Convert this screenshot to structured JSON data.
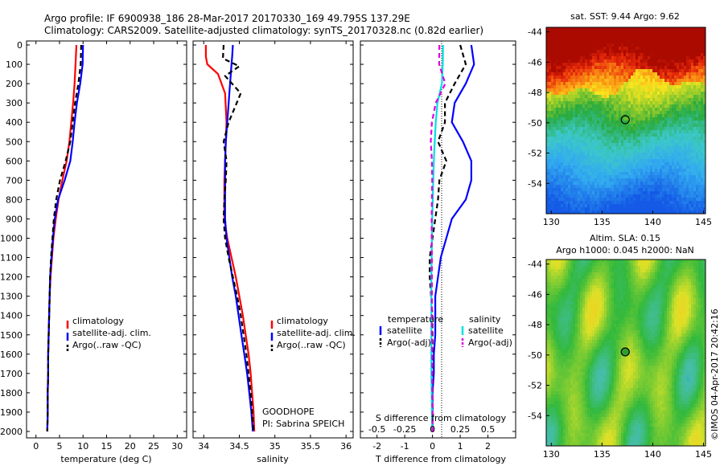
{
  "header": {
    "title_line1": "Argo profile: IF 6900938_186 28-Mar-2017 20170330_169 49.795S 137.29E",
    "title_line2": "Climatology: CARS2009. Satellite-adjusted climatology: synTS_20170328.nc (0.82d earlier)"
  },
  "colors": {
    "climatology": "#ff0000",
    "satellite": "#0000ff",
    "argo": "#000000",
    "satellite_s": "#00e0e0",
    "argo_s": "#e000e0"
  },
  "panels": {
    "temperature": {
      "xlabel": "temperature (deg C)",
      "xticks": [
        "0",
        "5",
        "10",
        "15",
        "20",
        "25",
        "30"
      ],
      "legend": [
        "climatology",
        "satellite-adj. clim.",
        "Argo(..raw -QC)"
      ]
    },
    "salinity": {
      "xlabel": "salinity",
      "xticks": [
        "34",
        "34.5",
        "35",
        "35.5",
        "36"
      ],
      "legend": [
        "climatology",
        "satellite-adj. clim.",
        "Argo(..raw -QC)"
      ],
      "note1": "GOODHOPE",
      "note2": "PI: Sabrina SPEICH"
    },
    "difference": {
      "xlabel": "T difference from climatology",
      "top_label": "S difference from climatology",
      "xticks_t": [
        "-2",
        "-1",
        "0",
        "1",
        "2"
      ],
      "xticks_s": [
        "-0.5",
        "-0.25",
        "0",
        "0.25",
        "0.5"
      ],
      "legend_t_title": "temperature",
      "legend_s_title": "salinity",
      "legend_t": [
        "satellite",
        "Argo(-adj)"
      ],
      "legend_s": [
        "satellite",
        "Argo(-adj)"
      ]
    },
    "sst_map": {
      "title": "sat. SST: 9.44 Argo: 9.62",
      "yticks": [
        "-44",
        "-46",
        "-48",
        "-50",
        "-52",
        "-54"
      ],
      "xticks": [
        "130",
        "135",
        "140",
        "145"
      ]
    },
    "sla_map": {
      "title_line1": "Altim. SLA: 0.15",
      "title_line2": "Argo h1000: 0.045 h2000: NaN",
      "yticks": [
        "-44",
        "-46",
        "-48",
        "-50",
        "-52",
        "-54"
      ],
      "xticks": [
        "130",
        "135",
        "140",
        "145"
      ],
      "credit": "©IMOS 04-Apr-2017 20:42:16"
    }
  },
  "depth_ticks": [
    "0",
    "100",
    "200",
    "300",
    "400",
    "500",
    "600",
    "700",
    "800",
    "900",
    "1000",
    "1100",
    "1200",
    "1300",
    "1400",
    "1500",
    "1600",
    "1700",
    "1800",
    "1900",
    "2000"
  ],
  "chart_data": [
    {
      "type": "line",
      "name": "temperature profile",
      "xlabel": "temperature (deg C)",
      "ylabel": "",
      "xlim": [
        -2,
        32
      ],
      "ylim": [
        2050,
        0
      ],
      "series": [
        {
          "name": "climatology",
          "color": "#ff0000",
          "style": "solid",
          "x": [
            8.6,
            8.4,
            8.2,
            7.9,
            7.5,
            7.1,
            6.5,
            5.6,
            4.8,
            4.2,
            3.7,
            3.4,
            3.1,
            2.9,
            2.8,
            2.7,
            2.6,
            2.6,
            2.5,
            2.5,
            2.4
          ],
          "y": [
            0,
            100,
            200,
            300,
            400,
            500,
            600,
            700,
            800,
            900,
            1000,
            1100,
            1200,
            1300,
            1400,
            1500,
            1600,
            1700,
            1800,
            1900,
            2000
          ]
        },
        {
          "name": "satellite-adj. clim.",
          "color": "#0000ff",
          "style": "solid",
          "x": [
            10.0,
            9.9,
            9.4,
            8.7,
            8.2,
            7.8,
            7.3,
            6.1,
            4.7,
            4.0,
            3.6,
            3.3,
            3.0,
            2.9,
            2.8,
            2.7,
            2.6,
            2.6,
            2.5,
            2.5,
            2.4
          ],
          "y": [
            0,
            100,
            200,
            300,
            400,
            500,
            600,
            700,
            800,
            900,
            1000,
            1100,
            1200,
            1300,
            1400,
            1500,
            1600,
            1700,
            1800,
            1900,
            2000
          ]
        },
        {
          "name": "Argo(..raw -QC)",
          "color": "#000000",
          "style": "dash",
          "x": [
            9.6,
            9.5,
            9.0,
            8.3,
            7.8,
            7.3,
            6.3,
            5.1,
            4.3,
            3.8,
            3.5,
            3.2,
            3.0,
            2.9,
            2.8,
            2.7,
            2.6,
            2.6,
            2.5,
            2.5,
            2.4
          ],
          "y": [
            0,
            100,
            200,
            300,
            400,
            500,
            600,
            700,
            800,
            900,
            1000,
            1100,
            1200,
            1300,
            1400,
            1500,
            1600,
            1700,
            1800,
            1900,
            2000
          ]
        }
      ]
    },
    {
      "type": "line",
      "name": "salinity profile",
      "xlabel": "salinity",
      "ylabel": "",
      "xlim": [
        33.85,
        36.1
      ],
      "ylim": [
        2050,
        0
      ],
      "series": [
        {
          "name": "climatology",
          "color": "#ff0000",
          "style": "solid",
          "x": [
            34.03,
            34.03,
            34.05,
            34.2,
            34.3,
            34.32,
            34.31,
            34.3,
            34.29,
            34.29,
            34.29,
            34.33,
            34.39,
            34.45,
            34.5,
            34.55,
            34.59,
            34.63,
            34.66,
            34.68,
            34.7,
            34.71
          ],
          "y": [
            0,
            60,
            100,
            150,
            250,
            400,
            500,
            600,
            700,
            800,
            900,
            1000,
            1100,
            1200,
            1300,
            1400,
            1500,
            1600,
            1700,
            1800,
            1900,
            2000
          ]
        },
        {
          "name": "satellite-adj. clim.",
          "color": "#0000ff",
          "style": "solid",
          "x": [
            34.41,
            34.4,
            34.39,
            34.38,
            34.36,
            34.33,
            34.31,
            34.3,
            34.3,
            34.3,
            34.3,
            34.32,
            34.36,
            34.4,
            34.45,
            34.49,
            34.53,
            34.57,
            34.61,
            34.64,
            34.67,
            34.69
          ],
          "y": [
            0,
            60,
            100,
            150,
            250,
            400,
            500,
            600,
            700,
            800,
            900,
            1000,
            1100,
            1200,
            1300,
            1400,
            1500,
            1600,
            1700,
            1800,
            1900,
            2000
          ]
        },
        {
          "name": "Argo(..raw -QC)",
          "color": "#000000",
          "style": "dash",
          "x": [
            34.28,
            34.27,
            34.5,
            34.3,
            34.52,
            34.35,
            34.28,
            34.32,
            34.31,
            34.29,
            34.28,
            34.3,
            34.35,
            34.41,
            34.47,
            34.52,
            34.56,
            34.6,
            34.63,
            34.66,
            34.68,
            34.7
          ],
          "y": [
            0,
            70,
            110,
            160,
            250,
            400,
            500,
            600,
            700,
            800,
            900,
            1000,
            1100,
            1200,
            1300,
            1400,
            1500,
            1600,
            1700,
            1800,
            1900,
            2000
          ]
        }
      ]
    },
    {
      "type": "line",
      "name": "difference from climatology",
      "xlabel": "T difference from climatology",
      "x2label": "S difference from climatology",
      "xlim": [
        -2.6,
        3.0
      ],
      "ylim": [
        2050,
        0
      ],
      "series": [
        {
          "name": "temperature satellite",
          "color": "#0000ff",
          "style": "solid",
          "x": [
            1.4,
            1.5,
            1.2,
            0.8,
            0.7,
            1.1,
            1.4,
            1.4,
            1.2,
            0.7,
            0.5,
            0.3,
            0.2,
            0.1,
            0.1,
            0.1,
            0.05,
            0.05,
            0.0,
            0.0,
            0.0
          ],
          "y": [
            0,
            100,
            200,
            300,
            400,
            500,
            600,
            700,
            800,
            900,
            1000,
            1100,
            1200,
            1300,
            1400,
            1500,
            1600,
            1700,
            1800,
            1900,
            2000
          ]
        },
        {
          "name": "temperature Argo(-adj)",
          "color": "#000000",
          "style": "dash",
          "x": [
            1.0,
            1.2,
            0.8,
            0.45,
            0.45,
            0.2,
            0.5,
            0.25,
            0.2,
            0.1,
            0.0,
            -0.1,
            -0.1,
            -0.05,
            0.0,
            0.0,
            0.0,
            0.0,
            0.0,
            0.0,
            0.0
          ],
          "y": [
            0,
            100,
            200,
            300,
            400,
            500,
            600,
            700,
            800,
            900,
            1000,
            1100,
            1200,
            1300,
            1400,
            1500,
            1600,
            1700,
            1800,
            1900,
            2000
          ]
        },
        {
          "name": "salinity satellite",
          "color": "#00e0e0",
          "style": "solid",
          "x": [
            0.38,
            0.37,
            0.34,
            0.18,
            0.12,
            0.08,
            0.05,
            0.03,
            0.01,
            -0.01,
            -0.02,
            -0.03,
            -0.04,
            -0.04,
            -0.04,
            -0.04,
            -0.04,
            -0.04,
            -0.03,
            -0.02,
            -0.01
          ],
          "y": [
            0,
            100,
            200,
            300,
            400,
            500,
            600,
            700,
            800,
            900,
            1000,
            1100,
            1200,
            1300,
            1400,
            1500,
            1600,
            1700,
            1800,
            1900,
            2000
          ]
        },
        {
          "name": "salinity Argo(-adj)",
          "color": "#e000e0",
          "style": "dash",
          "x": [
            0.25,
            0.24,
            0.46,
            0.12,
            -0.02,
            -0.06,
            -0.02,
            -0.01,
            -0.02,
            -0.03,
            -0.03,
            -0.02,
            -0.02,
            -0.02,
            -0.02,
            -0.02,
            -0.01,
            -0.01,
            -0.01,
            0.0,
            0.0
          ],
          "y": [
            0,
            100,
            200,
            300,
            400,
            500,
            600,
            700,
            800,
            900,
            1000,
            1100,
            1200,
            1300,
            1400,
            1500,
            1600,
            1700,
            1800,
            1900,
            2000
          ]
        }
      ]
    },
    {
      "type": "heatmap",
      "name": "sat. SST map",
      "title": "sat. SST: 9.44 Argo: 9.62",
      "xlim": [
        129.5,
        145.2
      ],
      "ylim": [
        -56,
        -43.7
      ],
      "marker": {
        "lon": 137.29,
        "lat": -49.795
      }
    },
    {
      "type": "heatmap",
      "name": "Altim. SLA map",
      "title": "Altim. SLA: 0.15 / Argo h1000: 0.045 h2000: NaN",
      "xlim": [
        129.5,
        145.2
      ],
      "ylim": [
        -56,
        -43.7
      ],
      "marker": {
        "lon": 137.29,
        "lat": -49.795
      }
    }
  ]
}
